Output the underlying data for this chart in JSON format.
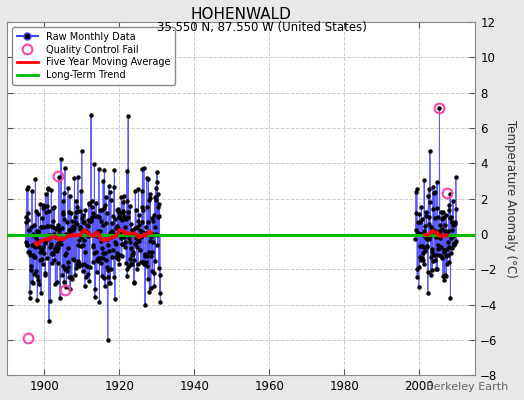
{
  "title": "HOHENWALD",
  "subtitle": "35.550 N, 87.550 W (United States)",
  "ylabel": "Temperature Anomaly (°C)",
  "watermark": "Berkeley Earth",
  "xlim": [
    1890,
    2015
  ],
  "ylim": [
    -8,
    12
  ],
  "yticks": [
    -8,
    -6,
    -4,
    -2,
    0,
    2,
    4,
    6,
    8,
    10,
    12
  ],
  "xticks": [
    1900,
    1920,
    1940,
    1960,
    1980,
    2000
  ],
  "background_color": "#e8e8e8",
  "plot_bg_color": "#ffffff",
  "early_period_start": 1895,
  "early_period_end": 1931,
  "late_period_start": 1999,
  "late_period_end": 2010,
  "long_term_trend_y": -0.05,
  "long_term_trend_color": "#00bb00",
  "moving_avg_color": "#ff0000",
  "raw_data_line_color": "#4444ff",
  "raw_data_stem_color": "#8888ff",
  "raw_data_marker_color": "#000000",
  "qc_fail_color": "#ff44aa",
  "seed": 42,
  "early_qc_times": [
    1895.7,
    1903.5,
    1905.5
  ],
  "early_qc_vals": [
    -5.9,
    3.3,
    -3.2
  ],
  "late_qc_times": [
    2005.4,
    2007.5
  ],
  "late_qc_vals": [
    7.1,
    2.3
  ]
}
